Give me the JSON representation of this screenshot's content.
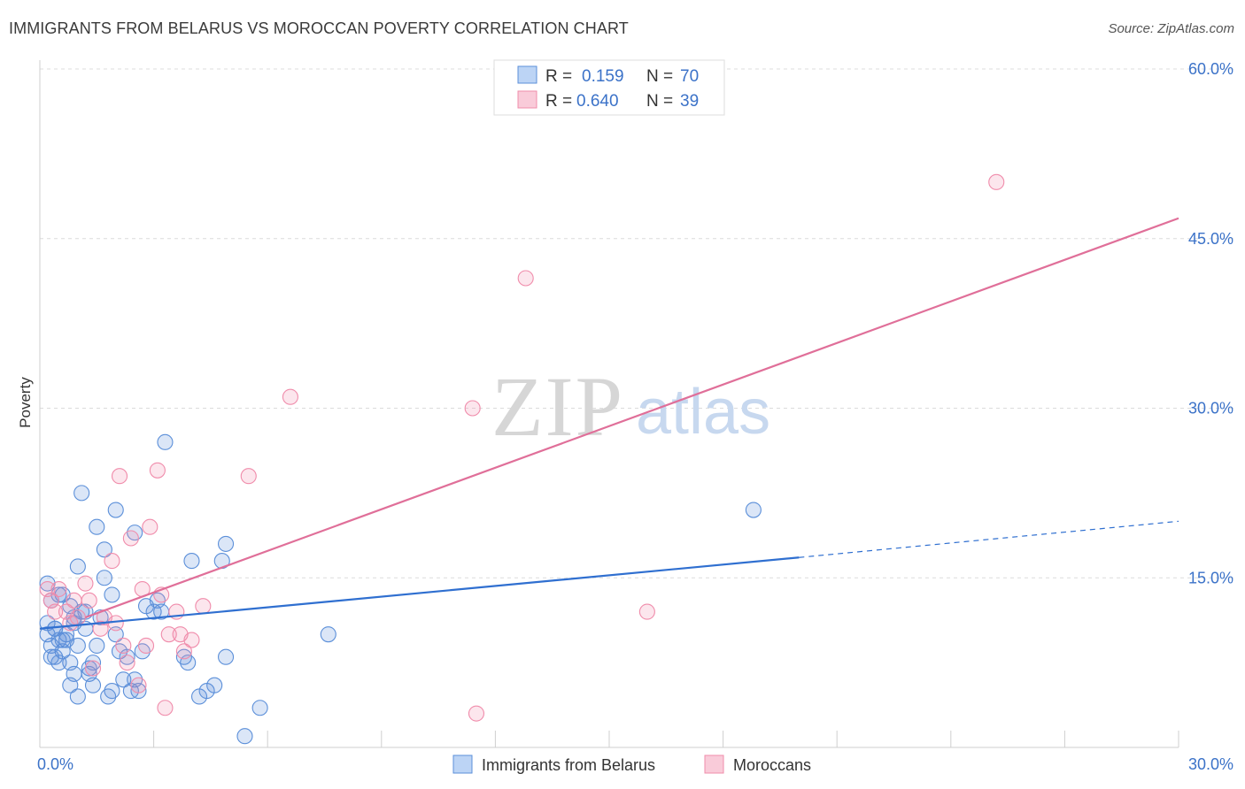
{
  "title": "IMMIGRANTS FROM BELARUS VS MOROCCAN POVERTY CORRELATION CHART",
  "source": "Source: ZipAtlas.com",
  "watermark": {
    "zip": "ZIP",
    "atlas": "atlas"
  },
  "chart_data": {
    "type": "scatter",
    "title": "IMMIGRANTS FROM BELARUS VS MOROCCAN POVERTY CORRELATION CHART",
    "xlabel": "",
    "ylabel": "Poverty",
    "xlim": [
      0,
      30
    ],
    "ylim": [
      0,
      60
    ],
    "x_tick_labels": [
      {
        "value": 0,
        "label": "0.0%"
      },
      {
        "value": 30,
        "label": "30.0%"
      }
    ],
    "y_tick_labels": [
      {
        "value": 15,
        "label": "15.0%"
      },
      {
        "value": 30,
        "label": "30.0%"
      },
      {
        "value": 45,
        "label": "45.0%"
      },
      {
        "value": 60,
        "label": "60.0%"
      }
    ],
    "grid": true,
    "legend_position": "top-center",
    "series": [
      {
        "name": "Immigrants from Belarus",
        "color": "#5b8fd9",
        "line_color": "#2f6fd0",
        "R": "0.159",
        "N": "70",
        "r_label": "R =",
        "n_label": "N =",
        "trend": {
          "x_start": 0,
          "y_start": 10.5,
          "x_solid_end": 20,
          "y_solid_end": 16.8,
          "x_end": 30,
          "y_end": 20.0
        },
        "points": [
          [
            0.2,
            14.5
          ],
          [
            0.3,
            13.0
          ],
          [
            0.2,
            11.0
          ],
          [
            0.4,
            10.5
          ],
          [
            0.3,
            9.0
          ],
          [
            0.5,
            9.5
          ],
          [
            0.6,
            8.5
          ],
          [
            0.4,
            8.0
          ],
          [
            0.7,
            10.0
          ],
          [
            0.8,
            12.5
          ],
          [
            0.9,
            11.0
          ],
          [
            0.6,
            13.5
          ],
          [
            1.0,
            16.0
          ],
          [
            1.1,
            12.0
          ],
          [
            1.2,
            10.5
          ],
          [
            0.8,
            7.5
          ],
          [
            0.9,
            6.5
          ],
          [
            0.8,
            5.5
          ],
          [
            1.0,
            4.5
          ],
          [
            1.3,
            6.5
          ],
          [
            1.4,
            7.5
          ],
          [
            1.5,
            9.0
          ],
          [
            1.6,
            11.5
          ],
          [
            1.7,
            15.0
          ],
          [
            1.5,
            19.5
          ],
          [
            1.1,
            22.5
          ],
          [
            1.7,
            17.5
          ],
          [
            1.9,
            13.5
          ],
          [
            2.0,
            10.0
          ],
          [
            1.9,
            5.0
          ],
          [
            2.1,
            8.5
          ],
          [
            2.2,
            6.0
          ],
          [
            2.5,
            19.0
          ],
          [
            2.5,
            6.0
          ],
          [
            2.6,
            5.0
          ],
          [
            2.7,
            8.5
          ],
          [
            2.8,
            12.5
          ],
          [
            3.0,
            12.0
          ],
          [
            3.1,
            13.0
          ],
          [
            3.2,
            12.0
          ],
          [
            3.3,
            27.0
          ],
          [
            3.8,
            8.0
          ],
          [
            3.9,
            7.5
          ],
          [
            4.0,
            16.5
          ],
          [
            4.2,
            4.5
          ],
          [
            4.4,
            5.0
          ],
          [
            4.6,
            5.5
          ],
          [
            4.8,
            16.5
          ],
          [
            4.9,
            18.0
          ],
          [
            4.9,
            8.0
          ],
          [
            1.8,
            4.5
          ],
          [
            2.0,
            21.0
          ],
          [
            0.3,
            8.0
          ],
          [
            0.5,
            7.5
          ],
          [
            0.7,
            9.5
          ],
          [
            1.2,
            12.0
          ],
          [
            0.4,
            10.5
          ],
          [
            1.0,
            9.0
          ],
          [
            0.9,
            11.5
          ],
          [
            2.3,
            8.0
          ],
          [
            1.4,
            5.5
          ],
          [
            5.4,
            1.0
          ],
          [
            5.8,
            3.5
          ],
          [
            7.6,
            10.0
          ],
          [
            18.8,
            21.0
          ],
          [
            0.2,
            10.0
          ],
          [
            0.6,
            9.5
          ],
          [
            1.3,
            7.0
          ],
          [
            2.4,
            5.0
          ],
          [
            0.5,
            13.5
          ]
        ]
      },
      {
        "name": "Moroccans",
        "color": "#f08cab",
        "line_color": "#e06f99",
        "R": "0.640",
        "N": "39",
        "r_label": "R =",
        "n_label": "N =",
        "trend": {
          "x_start": 1.2,
          "y_start": 11.5,
          "x_solid_end": 30,
          "y_solid_end": 46.8,
          "x_end": 30,
          "y_end": 46.8
        },
        "points": [
          [
            0.2,
            14.0
          ],
          [
            0.3,
            13.0
          ],
          [
            0.4,
            12.0
          ],
          [
            0.5,
            14.0
          ],
          [
            0.7,
            12.0
          ],
          [
            0.8,
            11.0
          ],
          [
            0.9,
            13.0
          ],
          [
            1.0,
            11.5
          ],
          [
            1.2,
            14.5
          ],
          [
            1.3,
            13.0
          ],
          [
            1.4,
            7.0
          ],
          [
            1.6,
            10.5
          ],
          [
            1.7,
            11.5
          ],
          [
            1.9,
            16.5
          ],
          [
            2.1,
            24.0
          ],
          [
            2.2,
            9.0
          ],
          [
            2.3,
            7.5
          ],
          [
            2.4,
            18.5
          ],
          [
            2.6,
            5.5
          ],
          [
            2.7,
            14.0
          ],
          [
            2.8,
            9.0
          ],
          [
            2.9,
            19.5
          ],
          [
            3.1,
            24.5
          ],
          [
            3.2,
            13.5
          ],
          [
            3.3,
            3.5
          ],
          [
            3.4,
            10.0
          ],
          [
            3.6,
            12.0
          ],
          [
            3.7,
            10.0
          ],
          [
            3.8,
            8.5
          ],
          [
            4.0,
            9.5
          ],
          [
            4.3,
            12.5
          ],
          [
            5.5,
            24.0
          ],
          [
            6.6,
            31.0
          ],
          [
            11.4,
            30.0
          ],
          [
            11.5,
            3.0
          ],
          [
            12.8,
            41.5
          ],
          [
            16.0,
            12.0
          ],
          [
            25.2,
            50.0
          ],
          [
            2.0,
            11.0
          ]
        ]
      }
    ]
  }
}
